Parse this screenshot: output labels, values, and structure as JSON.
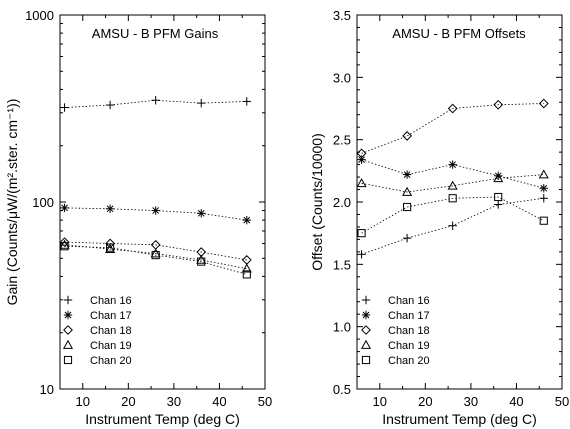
{
  "chart_data": [
    {
      "type": "scatter",
      "title": "AMSU - B PFM Gains",
      "xlabel": "Instrument Temp (deg C)",
      "ylabel": "Gain (Counts/μW/(m².ster. cm⁻¹))",
      "xlim": [
        5,
        50
      ],
      "ylim": [
        10,
        1000
      ],
      "yscale": "log",
      "x_ticks": [
        "10",
        "20",
        "30",
        "40",
        "50"
      ],
      "y_ticks": [
        "10",
        "100",
        "1000"
      ],
      "grid": false,
      "legend_position": "bottom-left",
      "series": [
        {
          "name": "Chan 16",
          "marker": "plus",
          "x": [
            6,
            16,
            26,
            36,
            46
          ],
          "values": [
            320,
            330,
            350,
            338,
            345
          ]
        },
        {
          "name": "Chan 17",
          "marker": "asterisk",
          "x": [
            6,
            16,
            26,
            36,
            46
          ],
          "values": [
            93,
            92,
            90,
            87,
            80
          ]
        },
        {
          "name": "Chan 18",
          "marker": "diamond",
          "x": [
            6,
            16,
            26,
            36,
            46
          ],
          "values": [
            61,
            60,
            59,
            54,
            49
          ]
        },
        {
          "name": "Chan 19",
          "marker": "triangle",
          "x": [
            6,
            16,
            26,
            36,
            46
          ],
          "values": [
            59,
            56,
            53,
            49,
            44
          ]
        },
        {
          "name": "Chan 20",
          "marker": "square",
          "x": [
            6,
            16,
            26,
            36,
            46
          ],
          "values": [
            58,
            57,
            52,
            48,
            41
          ]
        }
      ]
    },
    {
      "type": "scatter",
      "title": "AMSU - B PFM Offsets",
      "xlabel": "Instrument Temp (deg C)",
      "ylabel": "Offset (Counts/10000)",
      "xlim": [
        5,
        50
      ],
      "ylim": [
        0.5,
        3.5
      ],
      "yscale": "linear",
      "x_ticks": [
        "10",
        "20",
        "30",
        "40",
        "50"
      ],
      "y_ticks": [
        "0.5",
        "1.0",
        "1.5",
        "2.0",
        "2.5",
        "3.0",
        "3.5"
      ],
      "grid": false,
      "legend_position": "bottom-left",
      "series": [
        {
          "name": "Chan 16",
          "marker": "plus",
          "x": [
            6,
            16,
            26,
            36,
            46
          ],
          "values": [
            1.58,
            1.71,
            1.81,
            1.98,
            2.03
          ]
        },
        {
          "name": "Chan 17",
          "marker": "asterisk",
          "x": [
            6,
            16,
            26,
            36,
            46
          ],
          "values": [
            2.34,
            2.22,
            2.3,
            2.21,
            2.11
          ]
        },
        {
          "name": "Chan 18",
          "marker": "diamond",
          "x": [
            6,
            16,
            26,
            36,
            46
          ],
          "values": [
            2.39,
            2.53,
            2.75,
            2.78,
            2.79
          ]
        },
        {
          "name": "Chan 19",
          "marker": "triangle",
          "x": [
            6,
            16,
            26,
            36,
            46
          ],
          "values": [
            2.15,
            2.08,
            2.13,
            2.19,
            2.22
          ]
        },
        {
          "name": "Chan 20",
          "marker": "square",
          "x": [
            6,
            16,
            26,
            36,
            46
          ],
          "values": [
            1.75,
            1.96,
            2.03,
            2.04,
            1.85
          ]
        }
      ]
    }
  ]
}
